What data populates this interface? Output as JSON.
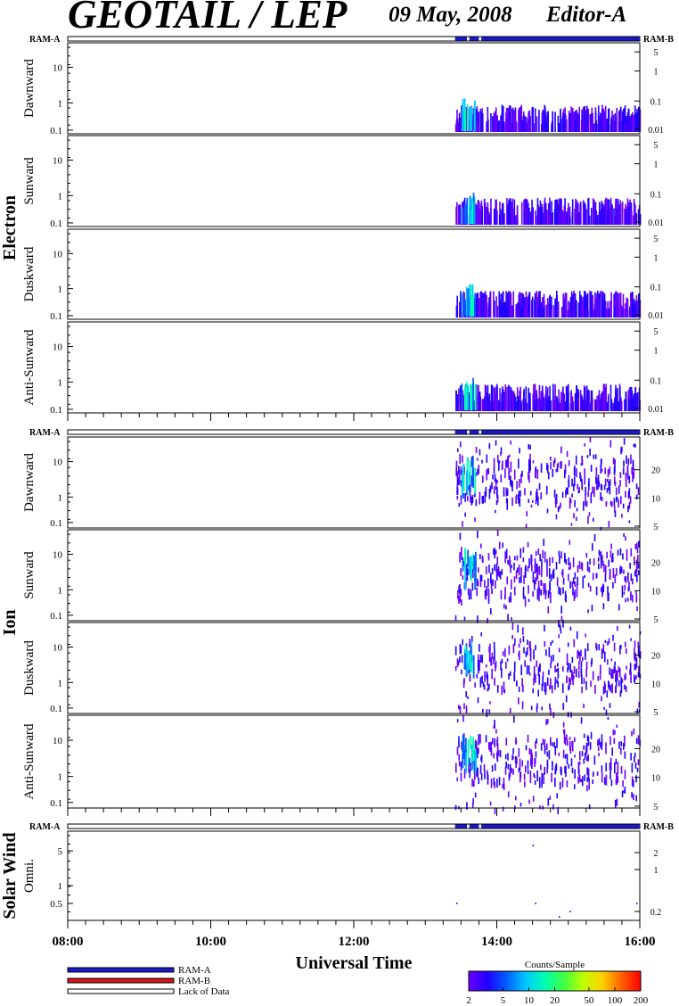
{
  "header": {
    "title": "GEOTAIL / LEP",
    "date": "09 May, 2008",
    "editor": "Editor-A"
  },
  "chart_data": {
    "type": "heatmap",
    "xlabel": "Universal Time",
    "x_ticks": [
      "08:00",
      "10:00",
      "12:00",
      "14:00",
      "16:00"
    ],
    "x_range": [
      "08:00",
      "16:00"
    ],
    "ram_labels": {
      "left": "RAM-A",
      "right": "RAM-B"
    },
    "groups": [
      {
        "name": "Electron",
        "panels": [
          {
            "label": "Dawnward",
            "left_ticks": [
              "10",
              "1",
              "0.1"
            ],
            "right_ticks": [
              "5",
              "1",
              "0.1",
              "0.01"
            ]
          },
          {
            "label": "Sunward",
            "left_ticks": [
              "10",
              "1",
              "0.1"
            ],
            "right_ticks": [
              "5",
              "1",
              "0.1",
              "0.01"
            ]
          },
          {
            "label": "Duskward",
            "left_ticks": [
              "10",
              "1",
              "0.1"
            ],
            "right_ticks": [
              "5",
              "1",
              "0.1",
              "0.01"
            ]
          },
          {
            "label": "Anti-Sunward",
            "left_ticks": [
              "10",
              "1",
              "0.1"
            ],
            "right_ticks": [
              "5",
              "1",
              "0.1",
              "0.01"
            ]
          }
        ]
      },
      {
        "name": "Ion",
        "panels": [
          {
            "label": "Dawnward",
            "left_ticks": [
              "10",
              "1",
              "0.1"
            ],
            "right_ticks": [
              "20",
              "10",
              "5"
            ]
          },
          {
            "label": "Sunward",
            "left_ticks": [
              "10",
              "1",
              "0.1"
            ],
            "right_ticks": [
              "20",
              "10",
              "5"
            ]
          },
          {
            "label": "Duskward",
            "left_ticks": [
              "10",
              "1",
              "0.1"
            ],
            "right_ticks": [
              "20",
              "10",
              "5"
            ]
          },
          {
            "label": "Anti-Sunward",
            "left_ticks": [
              "10",
              "1",
              "0.1"
            ],
            "right_ticks": [
              "20",
              "10",
              "5"
            ]
          }
        ]
      },
      {
        "name": "Solar Wind",
        "panels": [
          {
            "label": "Omni.",
            "left_ticks": [
              "5",
              "1",
              "0.5"
            ],
            "right_ticks": [
              "2",
              "1",
              "0.2"
            ]
          }
        ]
      }
    ],
    "mode_bar": {
      "segments": [
        {
          "start": "13:25",
          "end": "13:35",
          "mode": "RAM-A"
        },
        {
          "start": "13:37",
          "end": "13:45",
          "mode": "RAM-A"
        },
        {
          "start": "13:47",
          "end": "16:00",
          "mode": "RAM-A"
        }
      ]
    },
    "legend": [
      {
        "label": "RAM-A",
        "color": "#1a1acc"
      },
      {
        "label": "RAM-B",
        "color": "#d41515"
      },
      {
        "label": "Lack of Data",
        "color": "#ffffff"
      }
    ],
    "colorbar": {
      "title": "Counts/Sample",
      "ticks": [
        "2",
        "5",
        "10",
        "20",
        "50",
        "100",
        "200"
      ],
      "colors": [
        "#6a00ff",
        "#2000ff",
        "#0060ff",
        "#00c8ff",
        "#00ffb0",
        "#40ff40",
        "#c0ff00",
        "#ffd000",
        "#ff6000",
        "#ff0000"
      ]
    }
  }
}
